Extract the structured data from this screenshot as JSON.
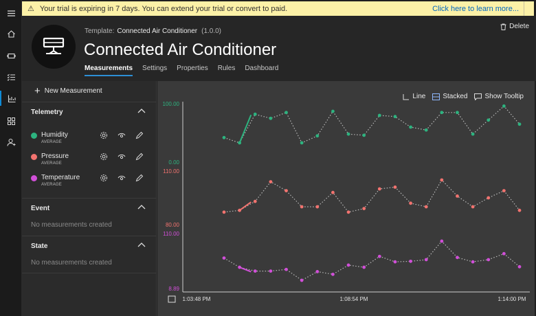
{
  "banner": {
    "message": "Your trial is expiring in 7 days. You can extend your trial or convert to paid.",
    "link": "Click here to learn more..."
  },
  "rail": [
    "menu-icon",
    "home-icon",
    "devices-icon",
    "rules-icon",
    "analytics-icon",
    "dashboard-icon",
    "user-icon"
  ],
  "header": {
    "template_label": "Template:",
    "template_name": "Connected Air Conditioner",
    "version": "(1.0.0)",
    "title": "Connected Air Conditioner",
    "delete_label": "Delete",
    "tabs": [
      {
        "label": "Measurements",
        "active": true
      },
      {
        "label": "Settings",
        "active": false
      },
      {
        "label": "Properties",
        "active": false
      },
      {
        "label": "Rules",
        "active": false
      },
      {
        "label": "Dashboard",
        "active": false
      }
    ]
  },
  "panel": {
    "new_measurement": "New Measurement",
    "telemetry": {
      "title": "Telemetry",
      "items": [
        {
          "name": "Humidity",
          "agg": "AVERAGE",
          "color": "#2db37f"
        },
        {
          "name": "Pressure",
          "agg": "AVERAGE",
          "color": "#f2736f"
        },
        {
          "name": "Temperature",
          "agg": "AVERAGE",
          "color": "#d14fd8"
        }
      ]
    },
    "event": {
      "title": "Event",
      "empty": "No measurements created"
    },
    "state": {
      "title": "State",
      "empty": "No measurements created"
    }
  },
  "chart_toolbar": {
    "line": "Line",
    "stacked": "Stacked",
    "tooltip": "Show Tooltip"
  },
  "chart_data": {
    "type": "line",
    "x_labels": [
      "1:03:48 PM",
      "1:08:54 PM",
      "1:14:00 PM"
    ],
    "series": [
      {
        "name": "Humidity",
        "color": "#2db37f",
        "ylim": [
          0,
          100
        ],
        "tick_labels": [
          "100.00",
          "0.00"
        ],
        "values": [
          42,
          33,
          82,
          75,
          85,
          33,
          45,
          87,
          48,
          46,
          80,
          78,
          60,
          55,
          85,
          85,
          48,
          72,
          96,
          65
        ]
      },
      {
        "name": "Pressure",
        "color": "#f2736f",
        "ylim": [
          80,
          110
        ],
        "tick_labels": [
          "110.00",
          "80.00"
        ],
        "values": [
          87,
          88,
          93,
          104,
          99,
          90,
          90,
          98,
          87,
          89,
          100,
          101,
          92,
          90,
          105,
          96,
          90,
          95,
          99,
          88
        ]
      },
      {
        "name": "Temperature",
        "color": "#d14fd8",
        "ylim": [
          8.89,
          110
        ],
        "tick_labels": [
          "110.00",
          "8.89"
        ],
        "values": [
          65,
          48,
          41,
          41,
          44,
          24,
          40,
          35,
          52,
          48,
          68,
          58,
          59,
          62,
          96,
          66,
          58,
          62,
          73,
          49
        ]
      }
    ]
  }
}
